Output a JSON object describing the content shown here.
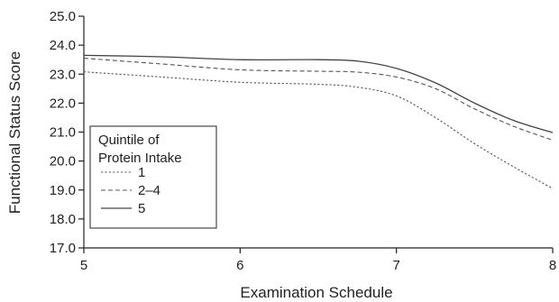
{
  "chart_data": {
    "type": "line",
    "title": "",
    "xlabel": "Examination Schedule",
    "ylabel": "Functional Status Score",
    "xlim": [
      5,
      8
    ],
    "ylim": [
      17.0,
      25.0
    ],
    "x_ticks": [
      5,
      6,
      7,
      8
    ],
    "x_tick_labels": [
      "5",
      "6",
      "7",
      "8"
    ],
    "y_ticks": [
      17.0,
      18.0,
      19.0,
      20.0,
      21.0,
      22.0,
      23.0,
      24.0,
      25.0
    ],
    "y_tick_labels": [
      "17.0",
      "18.0",
      "19.0",
      "20.0",
      "21.0",
      "22.0",
      "23.0",
      "24.0",
      "25.0"
    ],
    "grid": false,
    "legend": {
      "title": "Quintile of\nProtein Intake",
      "title_lines": [
        "Quintile of",
        "Protein Intake"
      ],
      "position": "bottom-left"
    },
    "series": [
      {
        "name": "1",
        "style": "dotted",
        "color": "#555555",
        "x": [
          5,
          5.5,
          6,
          6.5,
          6.75,
          7,
          7.25,
          7.5,
          7.75,
          8
        ],
        "y": [
          23.08,
          22.9,
          22.72,
          22.65,
          22.55,
          22.25,
          21.5,
          20.6,
          19.8,
          19.05
        ]
      },
      {
        "name": "2–4",
        "style": "dashed",
        "color": "#555555",
        "x": [
          5,
          5.5,
          6,
          6.5,
          6.75,
          7,
          7.25,
          7.5,
          7.75,
          8
        ],
        "y": [
          23.55,
          23.35,
          23.15,
          23.1,
          23.07,
          22.9,
          22.5,
          21.8,
          21.2,
          20.72
        ]
      },
      {
        "name": "5",
        "style": "solid",
        "color": "#444444",
        "x": [
          5,
          5.5,
          6,
          6.5,
          6.75,
          7,
          7.25,
          7.5,
          7.75,
          8
        ],
        "y": [
          23.65,
          23.6,
          23.5,
          23.5,
          23.45,
          23.2,
          22.7,
          22.0,
          21.4,
          20.98
        ]
      }
    ]
  }
}
